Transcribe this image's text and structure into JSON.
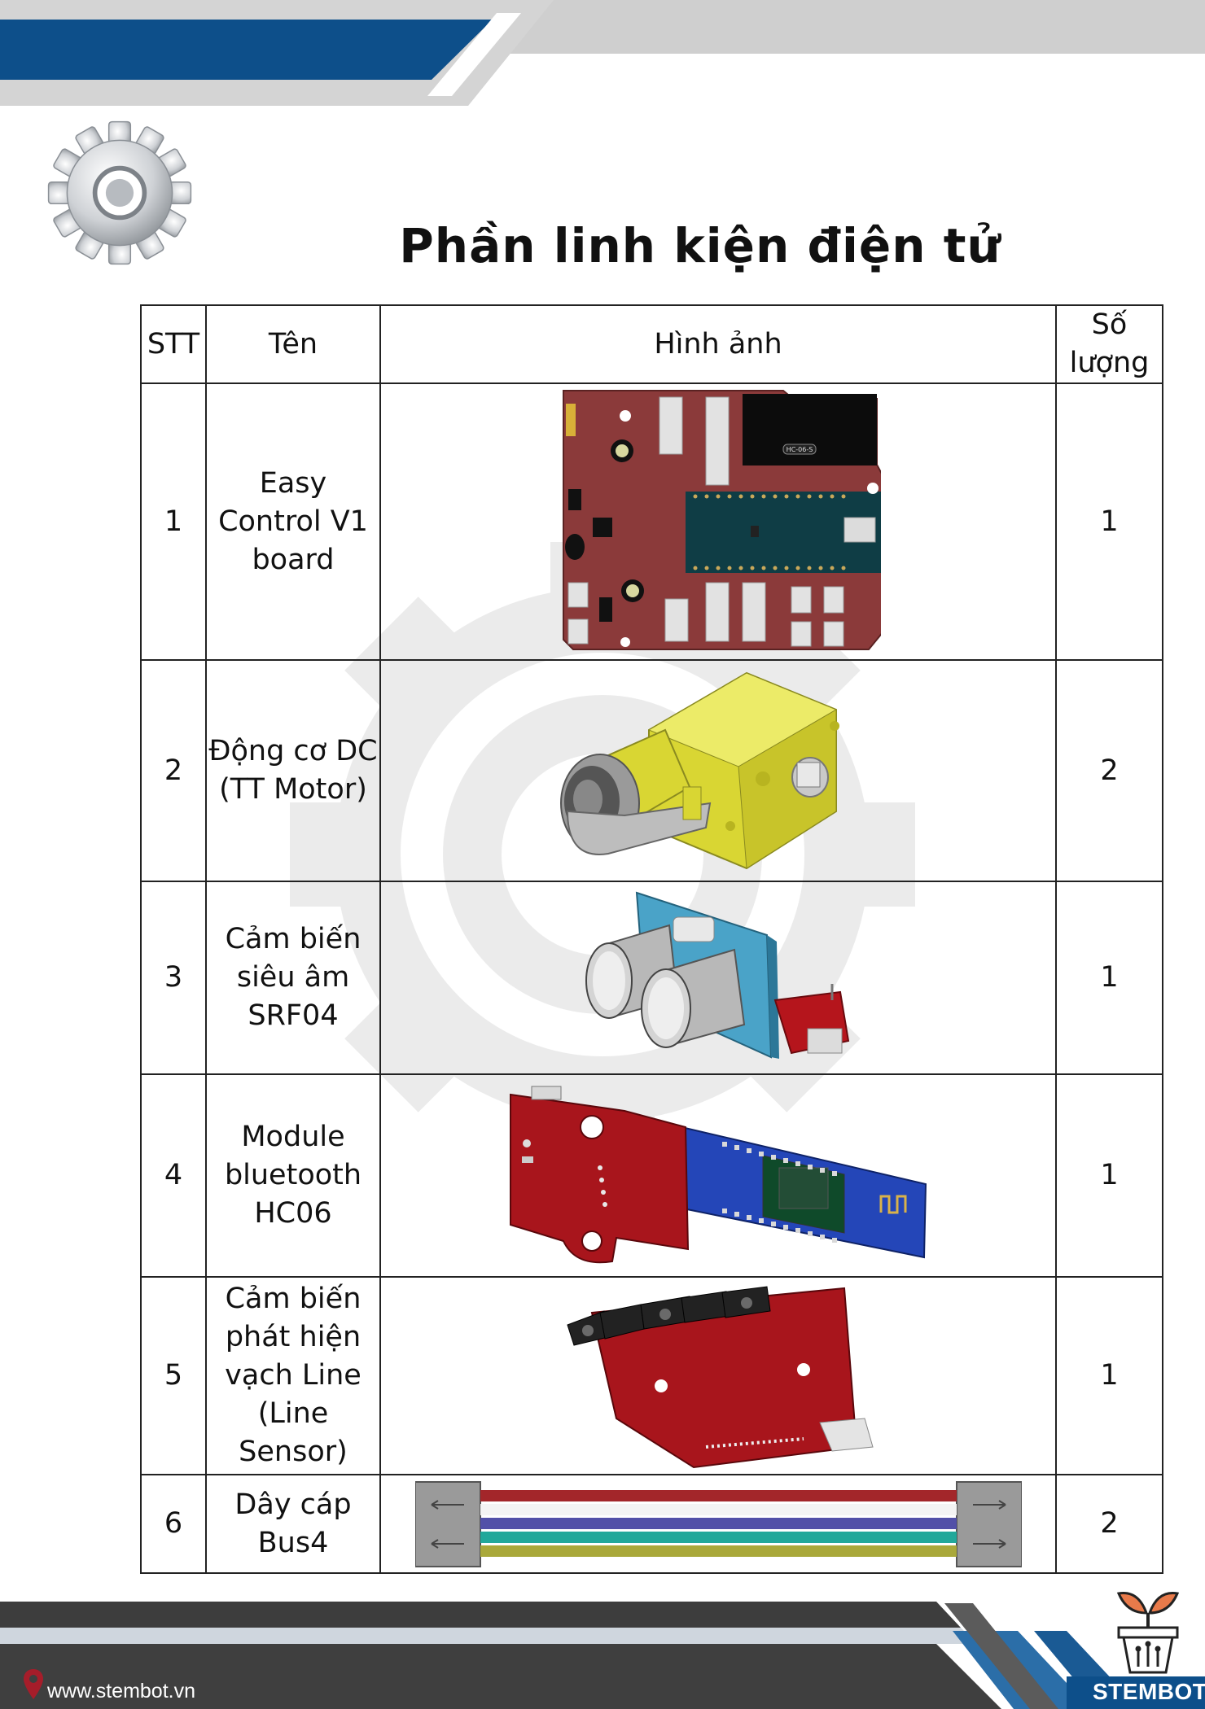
{
  "title": "Phần linh kiện điện tử",
  "table": {
    "headers": {
      "stt": "STT",
      "name": "Tên",
      "image": "Hình ảnh",
      "qty": "Số lượng"
    },
    "rows": [
      {
        "stt": "1",
        "name": "Easy Control V1 board",
        "qty": "1"
      },
      {
        "stt": "2",
        "name": "Động cơ DC (TT Motor)",
        "qty": "2"
      },
      {
        "stt": "3",
        "name": "Cảm biến siêu âm SRF04",
        "qty": "1"
      },
      {
        "stt": "4",
        "name": "Module bluetooth HC06",
        "qty": "1"
      },
      {
        "stt": "5",
        "name": "Cảm biến phát hiện vạch Line (Line Sensor)",
        "qty": "1"
      },
      {
        "stt": "6",
        "name": "Dây cáp Bus4",
        "qty": "2"
      }
    ]
  },
  "board_chip_label": "HC-06-S",
  "footer": {
    "url": "www.stembot.vn",
    "brand": "STEMBOT"
  },
  "colors": {
    "header_blue": "#0d4f8a",
    "footer_dark": "#3d3d3d",
    "board_red": "#8b3a3a",
    "motor_yellow": "#d9d633",
    "sensor_blue": "#4aa3c8",
    "hc06_blue": "#2446b8",
    "pcb_red": "#a8151c"
  }
}
